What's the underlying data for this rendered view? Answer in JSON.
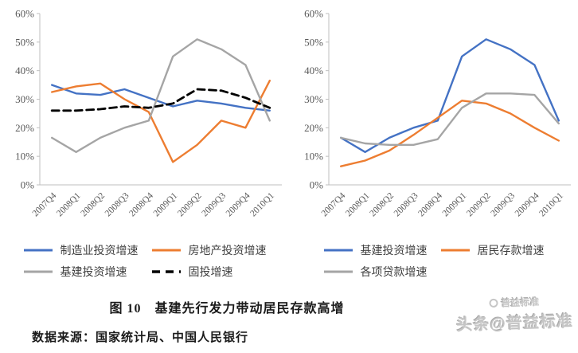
{
  "caption": "图 10　基建先行发力带动居民存款高增",
  "source": "数据来源：国家统计局、中国人民银行",
  "watermark": {
    "brand": "普益标准",
    "handle": "头条@普益标准"
  },
  "colors": {
    "blue": "#4472C4",
    "orange": "#ED7D31",
    "gray": "#A5A5A5",
    "black": "#000000",
    "axis_text": "#595959",
    "axis_line": "#BFBFBF",
    "legend_text": "#404040",
    "watermark": "#C6C6C6"
  },
  "chart_data": [
    {
      "type": "line",
      "title": "",
      "xlabel": "",
      "ylabel": "",
      "grid": false,
      "legend_position": "bottom",
      "ylim": [
        0,
        60
      ],
      "ytick_step": 10,
      "ytick_suffix": "%",
      "categories": [
        "2007Q4",
        "2008Q1",
        "2008Q2",
        "2008Q3",
        "2008Q4",
        "2009Q1",
        "2009Q2",
        "2009Q3",
        "2009Q4",
        "2010Q1"
      ],
      "series": [
        {
          "name": "制造业投资增速",
          "color_key": "blue",
          "dash": false,
          "values": [
            35,
            32,
            31.5,
            33.5,
            30.5,
            27.5,
            29.5,
            28.5,
            27,
            26
          ]
        },
        {
          "name": "房地产投资增速",
          "color_key": "orange",
          "dash": false,
          "values": [
            32.5,
            34.5,
            35.5,
            30,
            25.5,
            8,
            14,
            22.5,
            20,
            36.5
          ]
        },
        {
          "name": "基建投资增速",
          "color_key": "gray",
          "dash": false,
          "values": [
            16.5,
            11.5,
            16.5,
            20,
            22.5,
            45,
            51,
            47.5,
            42,
            22.5
          ]
        },
        {
          "name": "固投增速",
          "color_key": "black",
          "dash": true,
          "values": [
            26,
            26,
            26.5,
            27.5,
            27,
            28.5,
            33.5,
            33,
            30.5,
            27
          ]
        }
      ]
    },
    {
      "type": "line",
      "title": "",
      "xlabel": "",
      "ylabel": "",
      "grid": false,
      "legend_position": "bottom",
      "ylim": [
        0,
        60
      ],
      "ytick_step": 10,
      "ytick_suffix": "%",
      "categories": [
        "2007Q4",
        "2008Q1",
        "2008Q2",
        "2008Q3",
        "2008Q4",
        "2009Q1",
        "2009Q2",
        "2009Q3",
        "2009Q4",
        "2010Q1"
      ],
      "series": [
        {
          "name": "基建投资增速",
          "color_key": "blue",
          "dash": false,
          "values": [
            16.5,
            11.5,
            16.5,
            20,
            22.5,
            45,
            51,
            47.5,
            42,
            22.5
          ]
        },
        {
          "name": "居民存款增速",
          "color_key": "orange",
          "dash": false,
          "values": [
            6.5,
            8.5,
            12,
            17.5,
            23.5,
            29.5,
            28.5,
            25,
            20,
            15.5
          ]
        },
        {
          "name": "各项贷款增速",
          "color_key": "gray",
          "dash": false,
          "values": [
            16.5,
            14.5,
            14,
            14,
            16,
            27,
            32,
            32,
            31.5,
            21.5
          ]
        }
      ]
    }
  ]
}
